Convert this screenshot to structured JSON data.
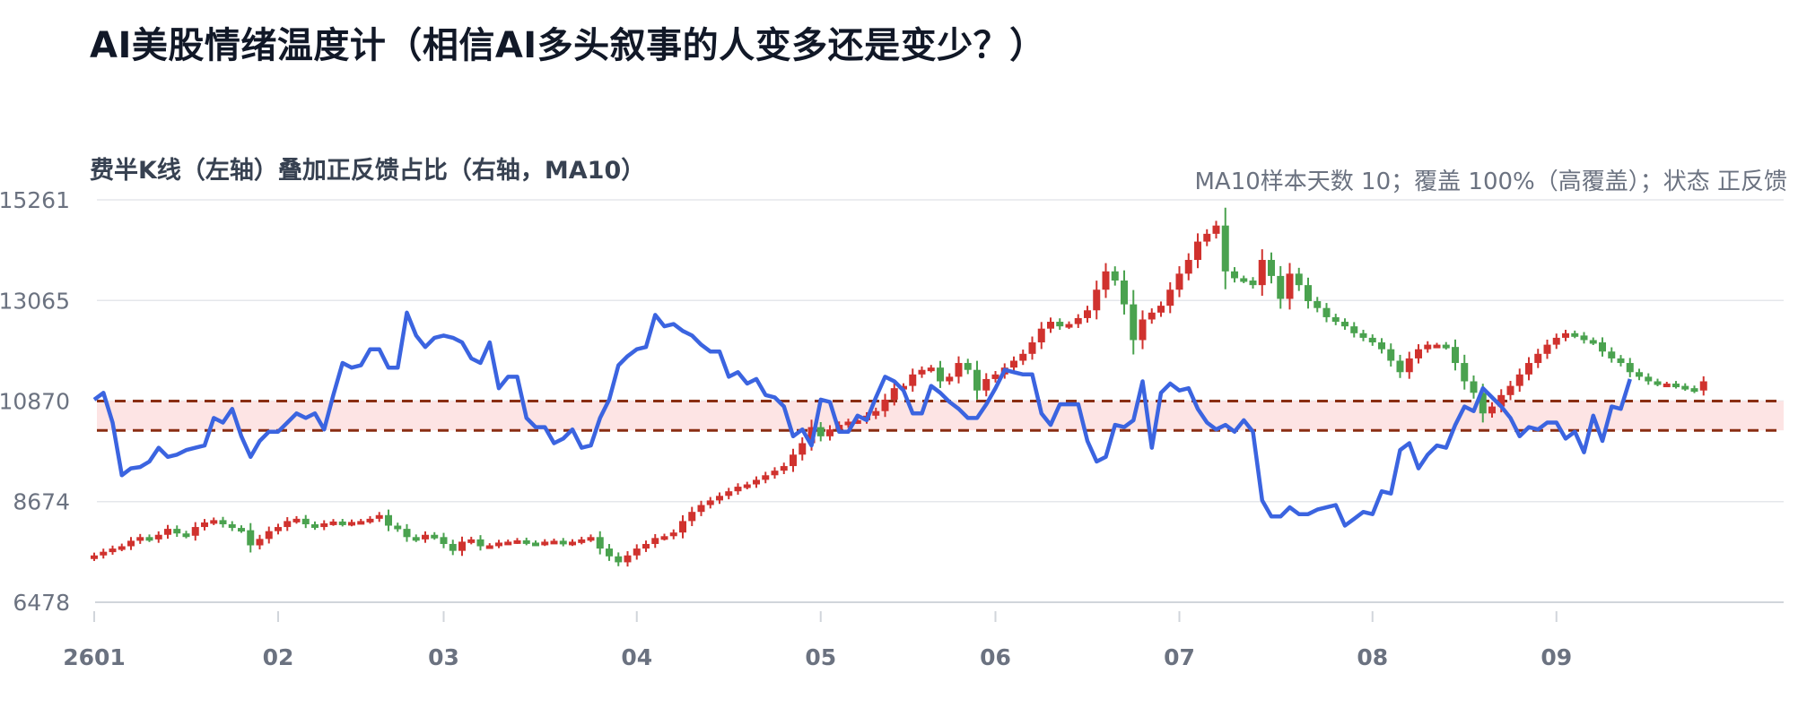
{
  "page": {
    "title": "AI美股情绪温度计（相信AI多头叙事的人变多还是变少？）",
    "subtitle": "费半K线（左轴）叠加正反馈占比（右轴，MA10）",
    "status": "MA10样本天数 10；覆盖 100%（高覆盖）；状态 正反馈"
  },
  "colors": {
    "up": "#d0322e",
    "down": "#4aa24f",
    "line": "#3b64e0",
    "band_fill": "#fde4e4",
    "band_line": "#8a2e12",
    "grid": "#e5e7eb",
    "axis": "#d1d5db"
  },
  "chart_data": {
    "type": "candlestick+line",
    "y_left_ticks": [
      "15261",
      "13065",
      "10870",
      "8674",
      "6478"
    ],
    "y_left_range": [
      6478,
      15261
    ],
    "x_ticks": [
      "2601",
      "02",
      "03",
      "04",
      "05",
      "06",
      "07",
      "08",
      "09"
    ],
    "x_tick_days": [
      0,
      20,
      38,
      59,
      79,
      98,
      118,
      139,
      159
    ],
    "band": {
      "upper": 10870,
      "lower": 10230
    },
    "candle_close": [
      7500,
      7580,
      7650,
      7700,
      7820,
      7900,
      7850,
      7950,
      8080,
      7980,
      7930,
      8120,
      8220,
      8270,
      8180,
      8100,
      8050,
      7720,
      7860,
      8030,
      8120,
      8250,
      8300,
      8180,
      8120,
      8200,
      8240,
      8190,
      8230,
      8250,
      8300,
      8380,
      8150,
      8080,
      7900,
      7850,
      7950,
      7900,
      7750,
      7600,
      7800,
      7850,
      7700,
      7720,
      7780,
      7800,
      7830,
      7780,
      7760,
      7800,
      7820,
      7760,
      7800,
      7850,
      7900,
      7650,
      7480,
      7350,
      7500,
      7650,
      7750,
      7880,
      7920,
      8000,
      8250,
      8450,
      8600,
      8700,
      8800,
      8900,
      9000,
      9050,
      9150,
      9250,
      9350,
      9450,
      9700,
      9950,
      10300,
      10100,
      10250,
      10350,
      10420,
      10450,
      10550,
      10650,
      10900,
      11150,
      11200,
      11450,
      11550,
      11600,
      11300,
      11400,
      11700,
      11550,
      11100,
      11350,
      11450,
      11600,
      11750,
      11900,
      12150,
      12450,
      12600,
      12500,
      12550,
      12680,
      12850,
      13300,
      13700,
      13500,
      12980,
      12200,
      12650,
      12800,
      12950,
      13300,
      13650,
      13950,
      14350,
      14520,
      14700,
      13700,
      13550,
      13500,
      13400,
      13950,
      13600,
      13100,
      13650,
      13400,
      13050,
      12900,
      12700,
      12600,
      12500,
      12350,
      12250,
      12150,
      12000,
      11750,
      11500,
      11800,
      12000,
      12100,
      12100,
      12050,
      11700,
      11300,
      11050,
      10600,
      10750,
      11000,
      11200,
      11450,
      11700,
      11900,
      12100,
      12250,
      12350,
      12300,
      12200,
      12150,
      11950,
      11800,
      11700,
      11500,
      11400,
      11300,
      11250,
      11250,
      11200,
      11150,
      11100,
      11300
    ],
    "sentiment_ma10": [
      10900,
      11050,
      10400,
      9250,
      9400,
      9430,
      9550,
      9850,
      9650,
      9700,
      9800,
      9850,
      9900,
      10500,
      10400,
      10700,
      10100,
      9650,
      10000,
      10200,
      10200,
      10400,
      10600,
      10500,
      10600,
      10250,
      11000,
      11700,
      11600,
      11650,
      12000,
      12000,
      11600,
      11600,
      12800,
      12300,
      12050,
      12250,
      12300,
      12250,
      12150,
      11800,
      11700,
      12150,
      11150,
      11400,
      11400,
      10500,
      10300,
      10300,
      9950,
      10050,
      10250,
      9850,
      9900,
      10500,
      10900,
      11650,
      11850,
      12000,
      12050,
      12750,
      12500,
      12550,
      12400,
      12300,
      12100,
      11950,
      11950,
      11400,
      11500,
      11250,
      11350,
      11000,
      10950,
      10750,
      10100,
      10250,
      9900,
      10900,
      10850,
      10200,
      10200,
      10550,
      10450,
      10950,
      11400,
      11300,
      11100,
      10600,
      10600,
      11200,
      11050,
      10850,
      10700,
      10500,
      10500,
      10800,
      11150,
      11550,
      11500,
      11450,
      11450,
      10600,
      10350,
      10800,
      10800,
      10800,
      10000,
      9550,
      9650,
      10350,
      10300,
      10450,
      11300,
      9850,
      11050,
      11250,
      11100,
      11150,
      10700,
      10400,
      10250,
      10350,
      10200,
      10450,
      10200,
      8700,
      8350,
      8350,
      8550,
      8400,
      8400,
      8500,
      8550,
      8600,
      8150,
      8300,
      8450,
      8400,
      8900,
      8850,
      9800,
      9950,
      9400,
      9700,
      9900,
      9850,
      10350,
      10750,
      10650,
      11150,
      10950,
      10750,
      10500,
      10100,
      10300,
      10250,
      10400,
      10400,
      10050,
      10200,
      9750,
      10550,
      10000,
      10750,
      10700,
      11350
    ]
  }
}
